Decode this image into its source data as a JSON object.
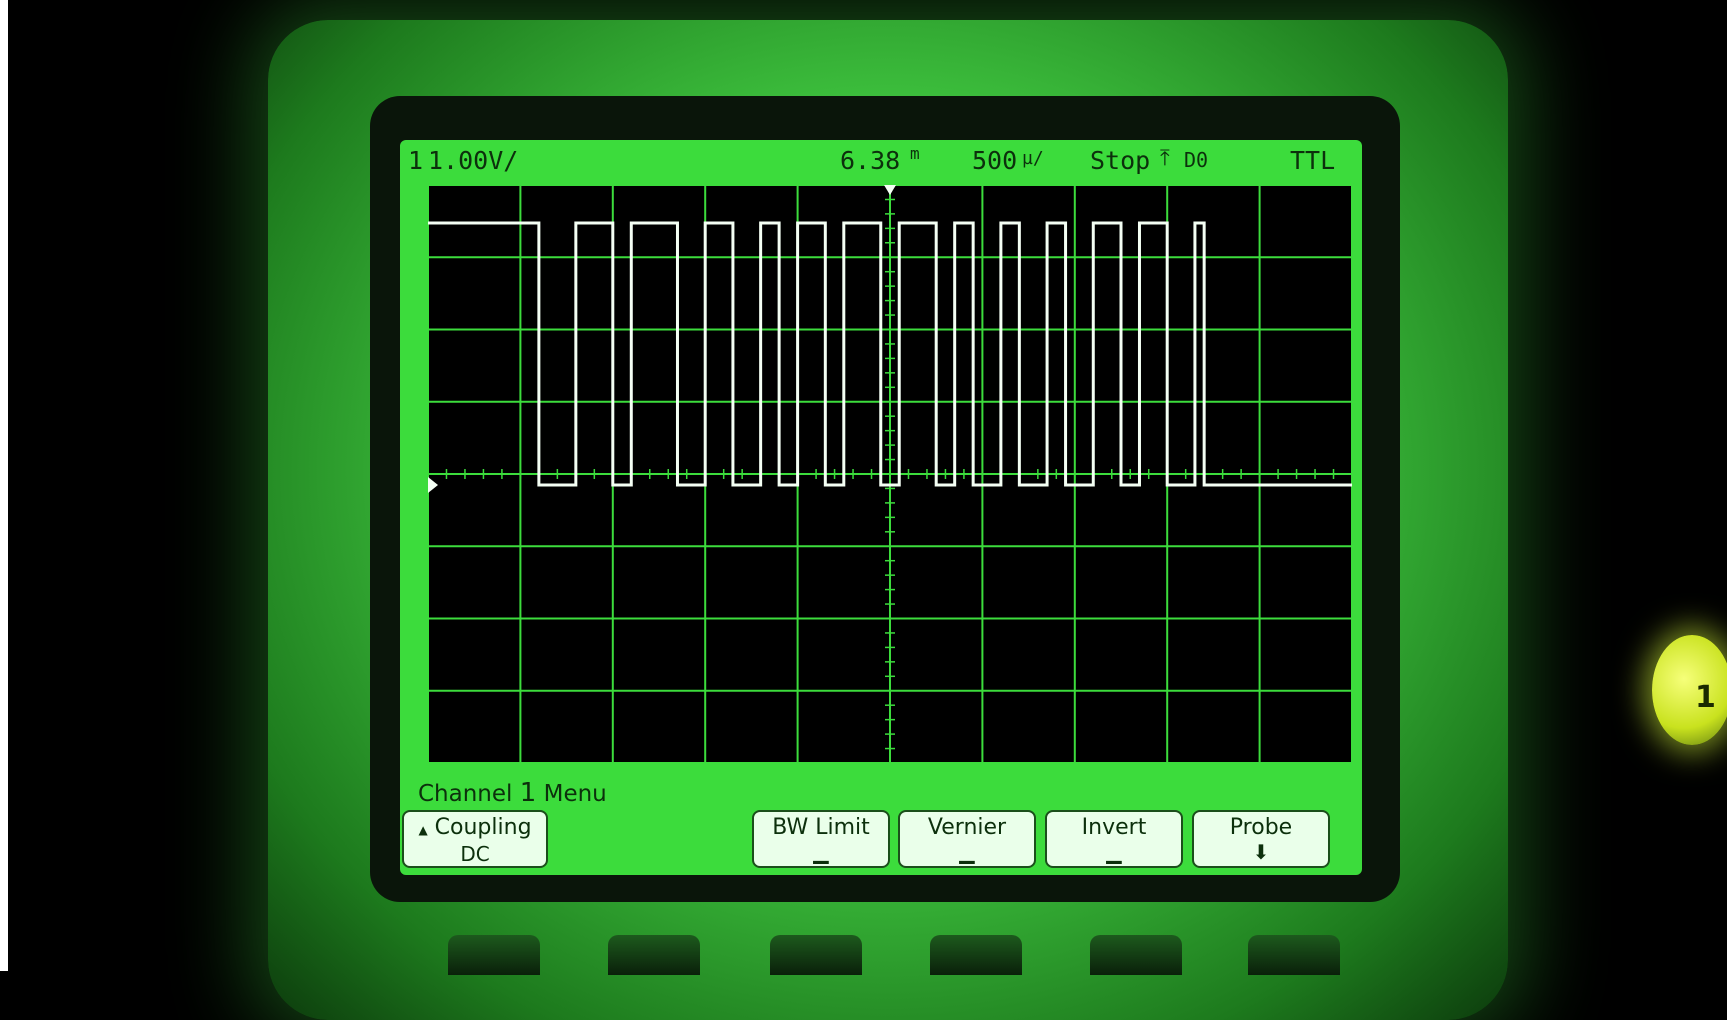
{
  "status": {
    "channel_num": "1",
    "volts_div": "1.00V/",
    "trigger_delay": "6.38",
    "delay_unit": "m",
    "time_div": "500",
    "time_unit": "µ/",
    "run_state": "Stop",
    "trigger_source": "D0",
    "threshold": "TTL"
  },
  "menu": {
    "title_prefix": "Channel",
    "channel_num": "1",
    "title_suffix": "Menu"
  },
  "softkeys": {
    "coupling_label": "Coupling",
    "coupling_value": "DC",
    "bw_limit_label": "BW Limit",
    "vernier_label": "Vernier",
    "invert_label": "Invert",
    "probe_label": "Probe"
  },
  "channel_button": {
    "label": "1"
  },
  "colors": {
    "lcd": "#3cdc3c",
    "trace": "#f4fff4",
    "grid": "#3cdc3c",
    "text": "#0c300c"
  },
  "waveform": {
    "high_level": 1,
    "low_level": 0,
    "pulse_count": 27
  }
}
